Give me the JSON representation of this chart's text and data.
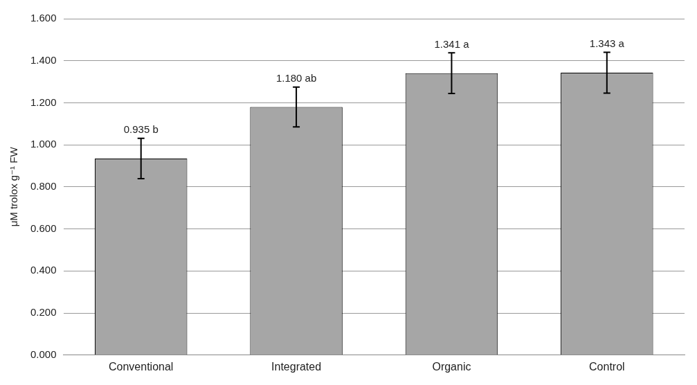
{
  "chart_data": {
    "type": "bar",
    "ylabel": "μM trolox g⁻¹ FW",
    "categories": [
      "Conventional",
      "Integrated",
      "Organic",
      "Control"
    ],
    "values": [
      0.935,
      1.18,
      1.341,
      1.343
    ],
    "errors": [
      0.096,
      0.095,
      0.097,
      0.097
    ],
    "value_labels": [
      "0.935 b",
      "1.180 ab",
      "1.341 a",
      "1.343 a"
    ],
    "color": "#a6a6a6",
    "ylim": [
      0,
      1.6
    ],
    "yticks": [
      {
        "value": 0,
        "label": "0.000"
      },
      {
        "value": 0.2,
        "label": "0.200"
      },
      {
        "value": 0.4,
        "label": "0.400"
      },
      {
        "value": 0.6,
        "label": "0.600"
      },
      {
        "value": 0.8,
        "label": "0.800"
      },
      {
        "value": 1,
        "label": "1.000"
      },
      {
        "value": 1.2,
        "label": "1.200"
      },
      {
        "value": 1.4,
        "label": "1.400"
      },
      {
        "value": 1.6,
        "label": "1.600"
      }
    ],
    "grid": "y",
    "legend": false
  }
}
